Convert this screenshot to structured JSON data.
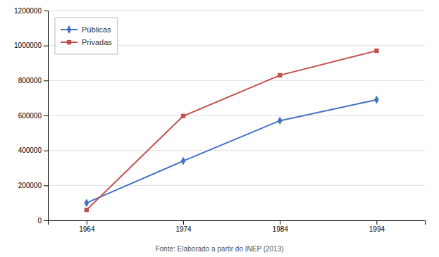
{
  "chart_data": {
    "type": "line",
    "caption": "Fonte: Elaborado a partir do INEP (2013)",
    "x": [
      1964,
      1974,
      1984,
      1994
    ],
    "series": [
      {
        "name": "Públicas",
        "color": "#4472C4",
        "marker": "diamond",
        "values": [
          100000,
          340000,
          570000,
          690000
        ]
      },
      {
        "name": "Privadas",
        "color": "#C0504D",
        "marker": "square",
        "values": [
          60000,
          597000,
          830000,
          970000
        ]
      }
    ],
    "xlim": [
      1960,
      1999
    ],
    "xticks": [
      1964,
      1974,
      1984,
      1994
    ],
    "ylim": [
      0,
      1200000
    ],
    "yticks": [
      0,
      200000,
      400000,
      600000,
      800000,
      1000000,
      1200000
    ],
    "grid": "y",
    "legend": "upper left"
  }
}
